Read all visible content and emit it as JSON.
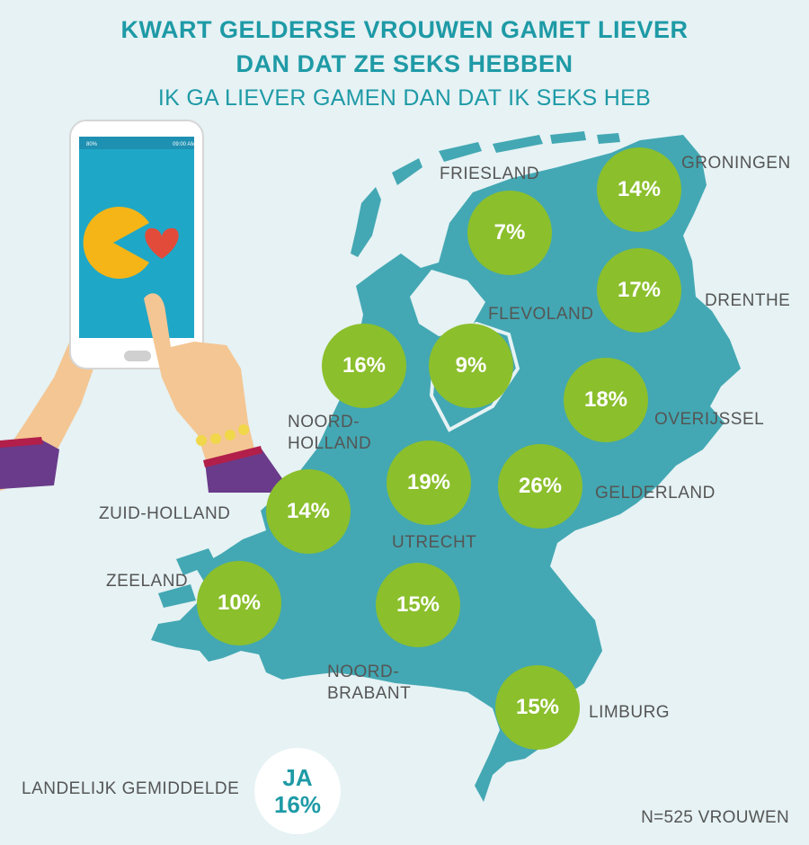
{
  "header": {
    "title_line1": "KWART GELDERSE VROUWEN GAMET LIEVER",
    "title_line2": "DAN DAT ZE SEKS HEBBEN",
    "subtitle": "IK GA LIEVER GAMEN DAN DAT IK SEKS HEB"
  },
  "colors": {
    "map": "#43a8b3",
    "bubble": "#8bbf2c",
    "title": "#1e9aa6",
    "background": "#e6f2f4"
  },
  "provinces": [
    {
      "name": "FRIESLAND",
      "value": "7%"
    },
    {
      "name": "GRONINGEN",
      "value": "14%"
    },
    {
      "name": "DRENTHE",
      "value": "17%"
    },
    {
      "name": "FLEVOLAND",
      "value": "9%"
    },
    {
      "name_line1": "NOORD-",
      "name_line2": "HOLLAND",
      "value": "16%"
    },
    {
      "name": "OVERIJSSEL",
      "value": "18%"
    },
    {
      "name": "UTRECHT",
      "value": "19%"
    },
    {
      "name": "GELDERLAND",
      "value": "26%"
    },
    {
      "name": "ZUID-HOLLAND",
      "value": "14%"
    },
    {
      "name": "ZEELAND",
      "value": "10%"
    },
    {
      "name_line1": "NOORD-",
      "name_line2": "BRABANT",
      "value": "15%"
    },
    {
      "name": "LIMBURG",
      "value": "15%"
    }
  ],
  "national_average": {
    "label": "LANDELIJK GEMIDDELDE",
    "answer": "JA",
    "value": "16%"
  },
  "sample_note": "N=525 VROUWEN",
  "phone": {
    "battery": "80%",
    "time": "09:00 AM"
  }
}
